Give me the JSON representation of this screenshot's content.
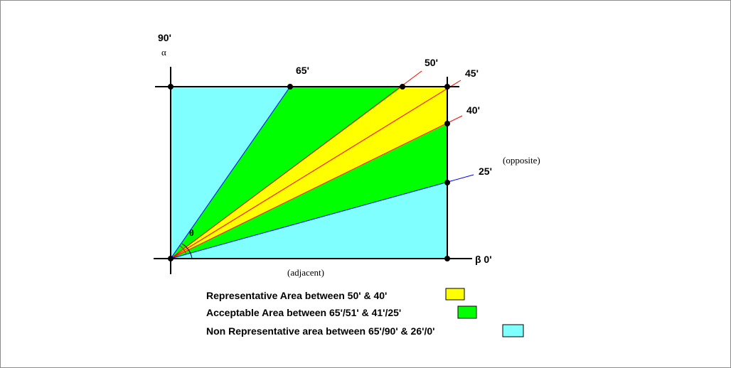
{
  "diagram": {
    "labels": {
      "top_angle": "90'",
      "alpha": "α",
      "right_angle": "β 0'",
      "adjacent": "(adjacent)",
      "opposite": "(opposite)",
      "theta": "θ"
    },
    "rays": [
      {
        "angle_label": "65'",
        "color": "#0000ff"
      },
      {
        "angle_label": "50'",
        "color": "#ff0000"
      },
      {
        "angle_label": "45'",
        "color": "#ff0000"
      },
      {
        "angle_label": "40'",
        "color": "#ff0000"
      },
      {
        "angle_label": "25'",
        "color": "#0000ff"
      }
    ],
    "colors": {
      "representative": "#ffff00",
      "acceptable": "#00ff00",
      "non_representative": "#7fffff",
      "axis": "#000000"
    },
    "legend": [
      {
        "text": "Representative Area between 50' & 40'",
        "swatch_color": "#ffff00"
      },
      {
        "text": "Acceptable Area between 65'/51' & 41'/25'",
        "swatch_color": "#00ff00"
      },
      {
        "text": "Non Representative area between 65'/90' & 26'/0'",
        "swatch_color": "#7fffff"
      }
    ]
  }
}
